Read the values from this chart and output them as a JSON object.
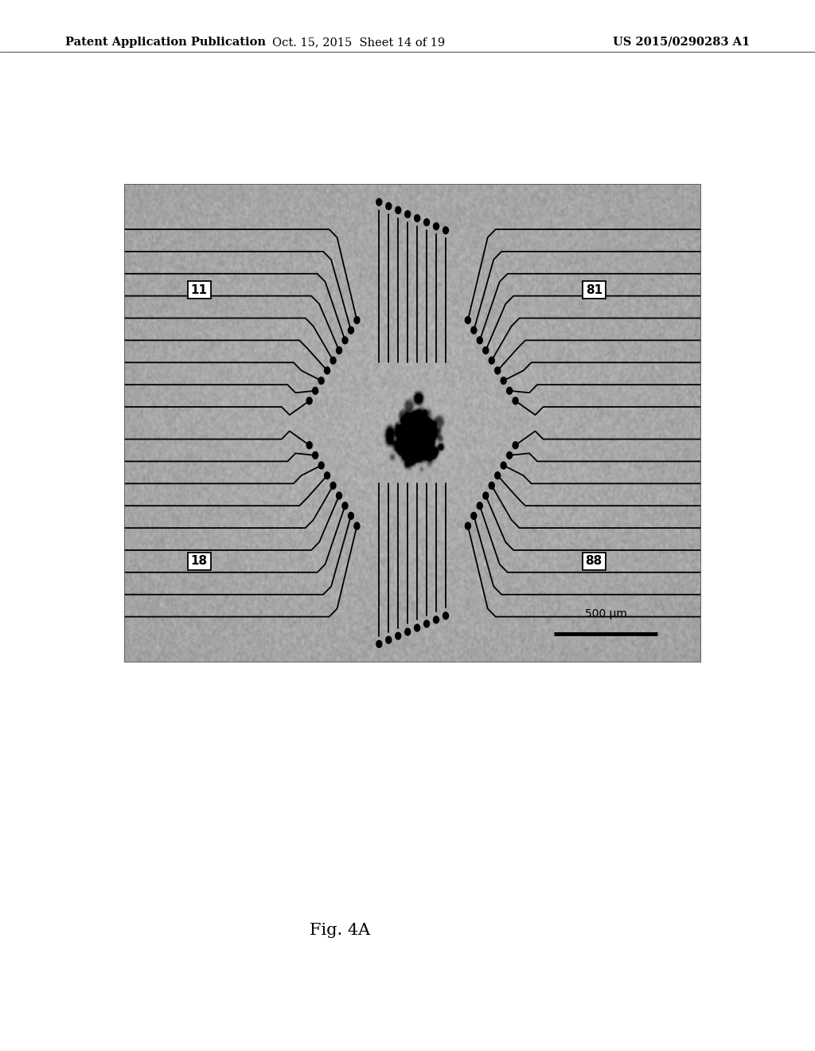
{
  "page_bg": "#ffffff",
  "header_left": "Patent Application Publication",
  "header_center": "Oct. 15, 2015  Sheet 14 of 19",
  "header_right": "US 2015/0290283 A1",
  "header_fontsize": 10.5,
  "fig_caption": "Fig. 4A",
  "caption_fontsize": 15,
  "scalebar_text": "500 μm",
  "noise_seed": 42
}
